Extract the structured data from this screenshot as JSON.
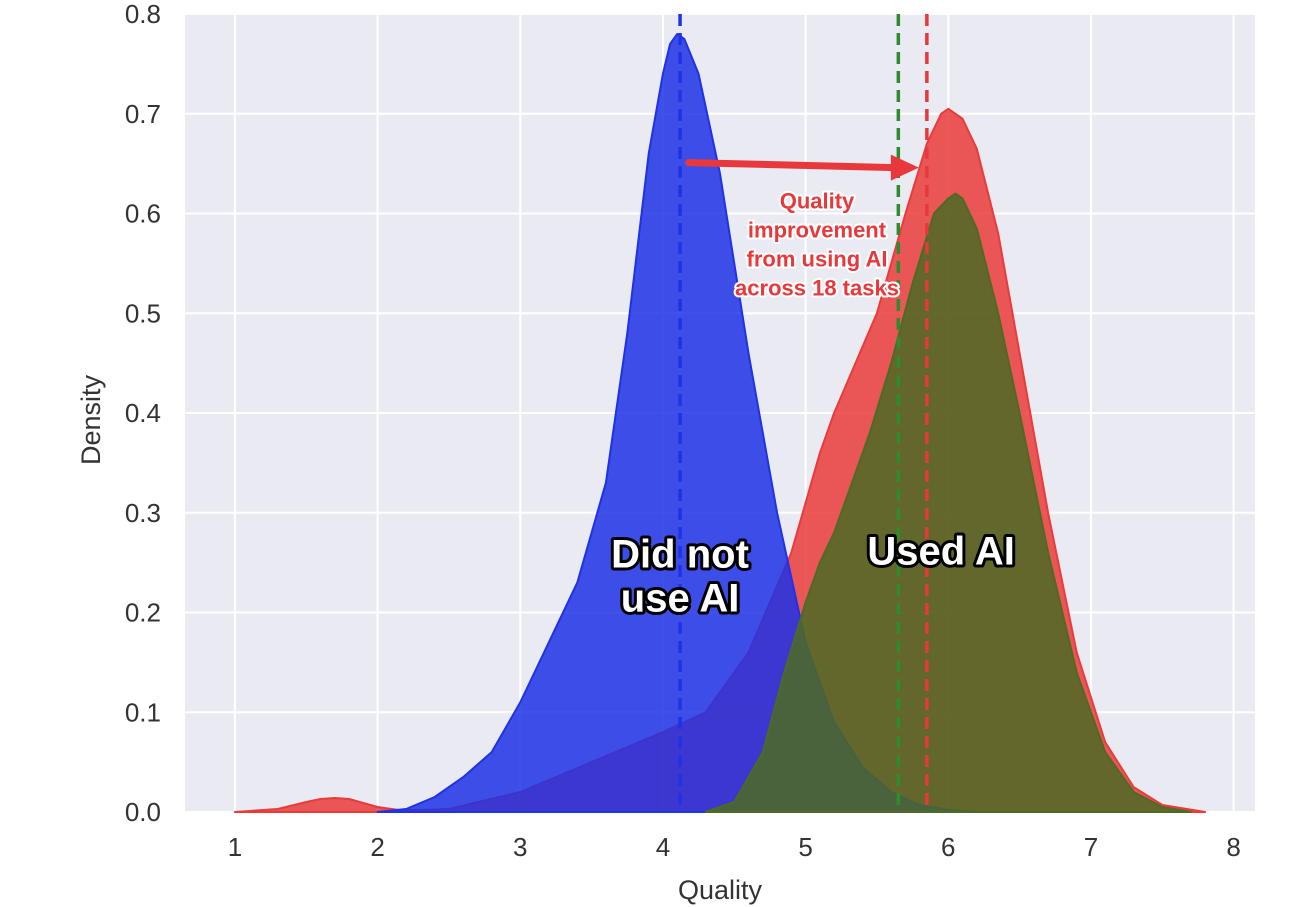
{
  "chart_data": {
    "type": "area",
    "xlabel": "Quality",
    "ylabel": "Density",
    "xlim": [
      0.65,
      8.15
    ],
    "ylim": [
      0,
      0.8
    ],
    "xticks": [
      1,
      2,
      3,
      4,
      5,
      6,
      7,
      8
    ],
    "yticks": [
      "0.0",
      "0.1",
      "0.2",
      "0.3",
      "0.4",
      "0.5",
      "0.6",
      "0.7",
      "0.8"
    ],
    "grid": true,
    "series": [
      {
        "color": "#ea3b3b",
        "x": [
          1.0,
          1.3,
          1.5,
          1.6,
          1.7,
          1.8,
          1.9,
          2.0,
          2.15,
          2.3,
          2.5,
          3.0,
          3.5,
          4.0,
          4.3,
          4.6,
          4.9,
          5.1,
          5.2,
          5.35,
          5.5,
          5.7,
          5.85,
          5.95,
          6.0,
          6.1,
          6.2,
          6.35,
          6.5,
          6.7,
          6.9,
          7.1,
          7.3,
          7.5,
          7.8
        ],
        "y": [
          0.0,
          0.003,
          0.01,
          0.013,
          0.014,
          0.013,
          0.009,
          0.005,
          0.002,
          0.002,
          0.003,
          0.02,
          0.05,
          0.08,
          0.1,
          0.16,
          0.26,
          0.36,
          0.4,
          0.45,
          0.5,
          0.6,
          0.67,
          0.7,
          0.705,
          0.695,
          0.665,
          0.58,
          0.46,
          0.3,
          0.16,
          0.07,
          0.025,
          0.007,
          0.0
        ]
      },
      {
        "color": "#1e32e6",
        "x": [
          2.0,
          2.2,
          2.4,
          2.6,
          2.8,
          3.0,
          3.2,
          3.4,
          3.6,
          3.75,
          3.9,
          4.0,
          4.05,
          4.1,
          4.15,
          4.25,
          4.4,
          4.6,
          4.8,
          5.0,
          5.2,
          5.4,
          5.6,
          5.8,
          6.0,
          6.2
        ],
        "y": [
          0.0,
          0.003,
          0.015,
          0.035,
          0.06,
          0.11,
          0.17,
          0.23,
          0.33,
          0.48,
          0.66,
          0.74,
          0.77,
          0.78,
          0.775,
          0.74,
          0.64,
          0.46,
          0.3,
          0.17,
          0.09,
          0.045,
          0.02,
          0.007,
          0.002,
          0.0
        ]
      },
      {
        "color": "#4c6b23",
        "x": [
          4.3,
          4.5,
          4.7,
          4.85,
          5.0,
          5.1,
          5.2,
          5.3,
          5.45,
          5.6,
          5.75,
          5.9,
          6.0,
          6.05,
          6.1,
          6.2,
          6.35,
          6.5,
          6.7,
          6.9,
          7.1,
          7.3,
          7.5,
          7.7
        ],
        "y": [
          0.0,
          0.01,
          0.06,
          0.14,
          0.21,
          0.25,
          0.28,
          0.32,
          0.38,
          0.45,
          0.53,
          0.6,
          0.615,
          0.62,
          0.615,
          0.585,
          0.5,
          0.4,
          0.26,
          0.14,
          0.06,
          0.02,
          0.005,
          0.0
        ]
      }
    ],
    "vlines": [
      {
        "x": 4.12,
        "color": "#1e32e6"
      },
      {
        "x": 5.65,
        "color": "#2e8b2e"
      },
      {
        "x": 5.85,
        "color": "#e8383b"
      }
    ],
    "annotations": {
      "arrow": {
        "x_from": 4.18,
        "x_to": 5.78,
        "y": 0.648,
        "color": "#e8383b"
      },
      "improvement_text": [
        "Quality",
        "improvement",
        "from using AI",
        "across 18 tasks"
      ],
      "improvement_anchor": {
        "x": 5.08,
        "y": 0.605
      },
      "no_ai_label": [
        "Did not",
        "use AI"
      ],
      "no_ai_anchor": {
        "x": 4.12,
        "y": 0.245
      },
      "ai_label": [
        "Used AI"
      ],
      "ai_anchor": {
        "x": 5.95,
        "y": 0.248
      }
    }
  }
}
